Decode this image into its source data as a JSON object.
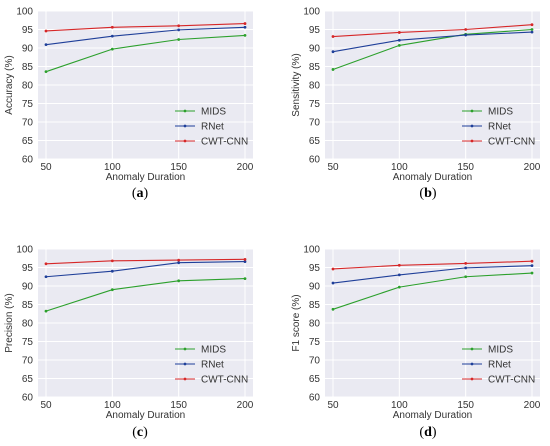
{
  "chart_data": [
    {
      "type": "line",
      "caption": "(a)",
      "xlabel": "Anomaly  Duration",
      "ylabel": "Accuracy (%)",
      "x": [
        50,
        100,
        150,
        200
      ],
      "xticks": [
        "50",
        "100",
        "150",
        "200"
      ],
      "ylim": [
        60,
        100
      ],
      "yticks": [
        "60",
        "65",
        "70",
        "75",
        "80",
        "85",
        "90",
        "95",
        "100"
      ],
      "grid": true,
      "legend_position": "bottom-right",
      "series": [
        {
          "name": "MIDS",
          "color": "#2ca02c",
          "values": [
            83.6,
            89.7,
            92.3,
            93.4
          ]
        },
        {
          "name": "RNet",
          "color": "#1f3f99",
          "values": [
            90.9,
            93.2,
            94.9,
            95.6
          ]
        },
        {
          "name": "CWT-CNN",
          "color": "#d62728",
          "values": [
            94.6,
            95.6,
            96.0,
            96.6
          ]
        }
      ]
    },
    {
      "type": "line",
      "caption": "(b)",
      "xlabel": "Anomaly  Duration",
      "ylabel": "Sensitivity (%)",
      "x": [
        50,
        100,
        150,
        200
      ],
      "xticks": [
        "50",
        "100",
        "150",
        "200"
      ],
      "ylim": [
        60,
        100
      ],
      "yticks": [
        "60",
        "65",
        "70",
        "75",
        "80",
        "85",
        "90",
        "95",
        "100"
      ],
      "grid": true,
      "legend_position": "bottom-right",
      "series": [
        {
          "name": "MIDS",
          "color": "#2ca02c",
          "values": [
            84.2,
            90.7,
            93.7,
            95.0
          ]
        },
        {
          "name": "RNet",
          "color": "#1f3f99",
          "values": [
            89.0,
            92.1,
            93.5,
            94.3
          ]
        },
        {
          "name": "CWT-CNN",
          "color": "#d62728",
          "values": [
            93.1,
            94.2,
            95.0,
            96.3
          ]
        }
      ]
    },
    {
      "type": "line",
      "caption": "(c)",
      "xlabel": "Anomaly  Duration",
      "ylabel": "Precision (%)",
      "x": [
        50,
        100,
        150,
        200
      ],
      "xticks": [
        "50",
        "100",
        "150",
        "200"
      ],
      "ylim": [
        60,
        100
      ],
      "yticks": [
        "60",
        "65",
        "70",
        "75",
        "80",
        "85",
        "90",
        "95",
        "100"
      ],
      "grid": true,
      "legend_position": "bottom-right",
      "series": [
        {
          "name": "MIDS",
          "color": "#2ca02c",
          "values": [
            83.2,
            89.0,
            91.4,
            92.0
          ]
        },
        {
          "name": "RNet",
          "color": "#1f3f99",
          "values": [
            92.5,
            94.0,
            96.3,
            96.6
          ]
        },
        {
          "name": "CWT-CNN",
          "color": "#d62728",
          "values": [
            96.0,
            96.8,
            97.0,
            97.2
          ]
        }
      ]
    },
    {
      "type": "line",
      "caption": "(d)",
      "xlabel": "Anomaly  Duration",
      "ylabel": "F1 score (%)",
      "x": [
        50,
        100,
        150,
        200
      ],
      "xticks": [
        "50",
        "100",
        "150",
        "200"
      ],
      "ylim": [
        60,
        100
      ],
      "yticks": [
        "60",
        "65",
        "70",
        "75",
        "80",
        "85",
        "90",
        "95",
        "100"
      ],
      "grid": true,
      "legend_position": "bottom-right",
      "series": [
        {
          "name": "MIDS",
          "color": "#2ca02c",
          "values": [
            83.7,
            89.7,
            92.5,
            93.5
          ]
        },
        {
          "name": "RNet",
          "color": "#1f3f99",
          "values": [
            90.8,
            93.0,
            94.9,
            95.5
          ]
        },
        {
          "name": "CWT-CNN",
          "color": "#d62728",
          "values": [
            94.6,
            95.6,
            96.1,
            96.7
          ]
        }
      ]
    }
  ]
}
